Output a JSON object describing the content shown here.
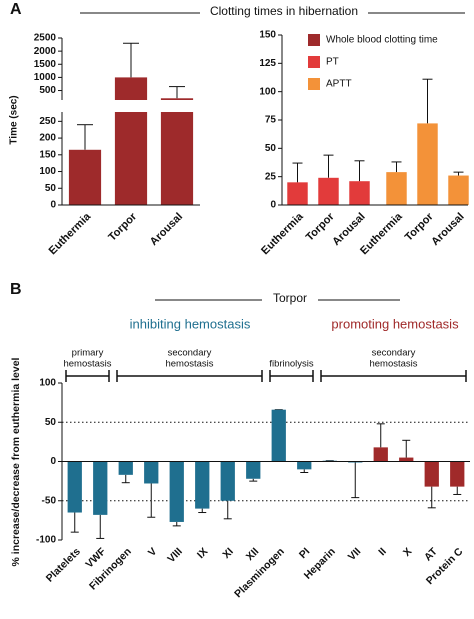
{
  "panel_labels": [
    "A",
    "B"
  ],
  "chart_data": [
    {
      "type": "broken-bar",
      "title": "Clotting times in hibernation",
      "ylabel": "Time (sec)",
      "categories": [
        "Euthermia",
        "Torpor",
        "Arousal"
      ],
      "series": [
        {
          "name": "Whole blood clotting time",
          "color": "#9e2a2b",
          "values": [
            165,
            1000,
            320
          ],
          "errors": [
            75,
            1300,
            330
          ]
        }
      ],
      "ylim": [
        0,
        2500
      ],
      "axis_break": [
        260,
        330
      ],
      "yticks": [
        0,
        50,
        100,
        150,
        200,
        250,
        500,
        1000,
        1500,
        2000,
        2500
      ]
    },
    {
      "type": "grouped-bar",
      "categories": [
        "Euthermia",
        "Torpor",
        "Arousal",
        "Euthermia",
        "Torpor",
        "Arousal"
      ],
      "series": [
        {
          "name": "PT",
          "color": "#e23b3b",
          "values": [
            20,
            24,
            21,
            null,
            null,
            null
          ],
          "errors": [
            17,
            20,
            18,
            null,
            null,
            null
          ]
        },
        {
          "name": "APTT",
          "color": "#f39239",
          "values": [
            null,
            null,
            null,
            29,
            72,
            26
          ],
          "errors": [
            null,
            null,
            null,
            9,
            39,
            3
          ]
        }
      ],
      "ylim": [
        0,
        150
      ],
      "yticks": [
        0,
        25,
        50,
        75,
        100,
        125,
        150
      ],
      "legend": "upper right"
    },
    {
      "type": "bar",
      "title": "Torpor",
      "ylabel": "% increase/decrease from euthermia level",
      "annotations": [
        {
          "text": "inhibiting hemostasis",
          "color": "#1f6f8f"
        },
        {
          "text": "promoting hemostasis",
          "color": "#a02a2a"
        }
      ],
      "groups": [
        {
          "label": [
            "primary",
            "hemostasis"
          ],
          "start": 0,
          "end": 1
        },
        {
          "label": [
            "secondary",
            "hemostasis"
          ],
          "start": 2,
          "end": 7
        },
        {
          "label": [
            "fibrinolysis"
          ],
          "start": 8,
          "end": 9
        },
        {
          "label": [
            "secondary",
            "hemostasis"
          ],
          "start": 10,
          "end": 15
        }
      ],
      "categories": [
        "Platelets",
        "VWF",
        "Fibrinogen",
        "V",
        "VIII",
        "IX",
        "XI",
        "XII",
        "Plasminogen",
        "PI",
        "Heparin",
        "VII",
        "II",
        "X",
        "AT",
        "Protein C"
      ],
      "values": [
        -65,
        -68,
        -17,
        -28,
        -77,
        -60,
        -50,
        -22,
        66,
        -10,
        1,
        -1,
        18,
        5,
        -32,
        -32
      ],
      "errors": [
        25,
        30,
        10,
        43,
        5,
        5,
        23,
        3,
        0,
        4,
        0,
        45,
        30,
        22,
        27,
        10
      ],
      "colors": [
        "#1f6f8f",
        "#1f6f8f",
        "#1f6f8f",
        "#1f6f8f",
        "#1f6f8f",
        "#1f6f8f",
        "#1f6f8f",
        "#1f6f8f",
        "#1f6f8f",
        "#1f6f8f",
        "#1f6f8f",
        "#1f6f8f",
        "#a02a2a",
        "#a02a2a",
        "#a02a2a",
        "#a02a2a"
      ],
      "ylim": [
        -100,
        100
      ],
      "yticks": [
        -100,
        -50,
        0,
        50,
        100
      ],
      "dotted_lines": [
        50,
        -50
      ]
    }
  ]
}
